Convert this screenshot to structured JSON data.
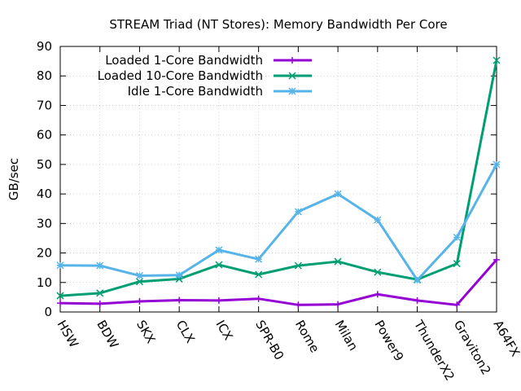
{
  "chart_data": {
    "type": "line",
    "title": "STREAM Triad (NT Stores): Memory Bandwidth Per Core",
    "ylabel": "GB/sec",
    "xlabel": "",
    "ylim": [
      0,
      90
    ],
    "yticks": [
      0,
      10,
      20,
      30,
      40,
      50,
      60,
      70,
      80,
      90
    ],
    "grid": true,
    "legend_position": "top-left",
    "categories": [
      "HSW",
      "BDW",
      "SKX",
      "CLX",
      "ICX",
      "SPR-B0",
      "Rome",
      "Milan",
      "Power9",
      "ThunderX2",
      "Graviton2",
      "A64FX"
    ],
    "series": [
      {
        "name": "Loaded 1-Core Bandwidth",
        "color": "#9400d3",
        "marker": "plus",
        "values": [
          3.0,
          2.8,
          3.6,
          4.0,
          3.9,
          4.5,
          2.4,
          2.6,
          6.0,
          3.9,
          2.4,
          17.7
        ]
      },
      {
        "name": "Loaded 10-Core Bandwidth",
        "color": "#009e73",
        "marker": "x",
        "values": [
          5.5,
          6.4,
          10.3,
          11.2,
          16.0,
          12.7,
          15.7,
          17.1,
          13.5,
          11.0,
          16.4,
          85.3
        ]
      },
      {
        "name": "Idle 1-Core Bandwidth",
        "color": "#56b4e9",
        "marker": "star",
        "values": [
          15.8,
          15.7,
          12.3,
          12.5,
          21.0,
          17.9,
          34.0,
          40.0,
          31.2,
          10.8,
          25.3,
          50.0
        ]
      }
    ]
  }
}
